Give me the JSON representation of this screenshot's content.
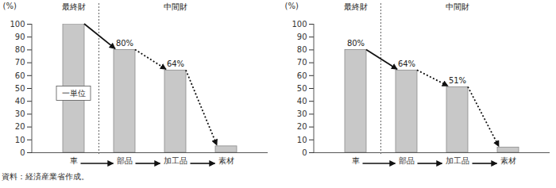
{
  "chart_data": [
    {
      "type": "bar",
      "categories": [
        "車",
        "部品",
        "加工品",
        "素材"
      ],
      "values": [
        100,
        80,
        64,
        5
      ],
      "value_labels": [
        null,
        "80%",
        "64%",
        null
      ],
      "data_labels": true,
      "ylabel": "(%)",
      "ylim": [
        0,
        100
      ],
      "yticks": [
        0,
        10,
        20,
        30,
        40,
        50,
        60,
        70,
        80,
        90,
        100
      ],
      "color": "#c8c8c8",
      "grid": false,
      "sections": [
        "最終財",
        "中間財"
      ],
      "annotations": [
        {
          "text": "一単位",
          "category": "車",
          "y": 46
        }
      ]
    },
    {
      "type": "bar",
      "categories": [
        "車",
        "部品",
        "加工品",
        "素材"
      ],
      "values": [
        80,
        64,
        51,
        4
      ],
      "value_labels": [
        "80%",
        "64%",
        "51%",
        null
      ],
      "data_labels": true,
      "ylabel": "(%)",
      "ylim": [
        0,
        100
      ],
      "yticks": [
        0,
        10,
        20,
        30,
        40,
        50,
        60,
        70,
        80,
        90,
        100
      ],
      "color": "#c8c8c8",
      "grid": false,
      "sections": [
        "最終財",
        "中間財"
      ]
    }
  ],
  "caption": "資料：経済産業省作成。"
}
